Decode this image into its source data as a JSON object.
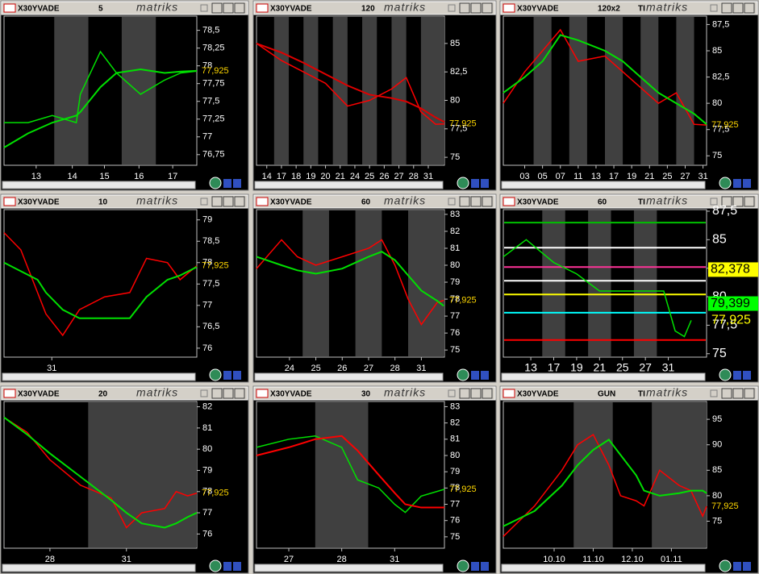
{
  "chart_data": [
    {
      "type": "line",
      "title": "X30YVADE",
      "subtitle": "5",
      "brand": "matriks",
      "x": [
        0,
        3,
        6,
        9,
        9.5,
        12,
        14,
        17,
        20,
        22,
        24
      ],
      "xlim": [
        0,
        24
      ],
      "xticks": [
        {
          "value": 4,
          "label": "13"
        },
        {
          "value": 8.5,
          "label": "14"
        },
        {
          "value": 12.5,
          "label": "15"
        },
        {
          "value": 16.8,
          "label": "16"
        },
        {
          "value": 21,
          "label": "17"
        }
      ],
      "series": [
        {
          "color": "#00e000",
          "values": [
            77.2,
            77.2,
            77.3,
            77.2,
            77.6,
            78.2,
            77.9,
            77.6,
            77.8,
            77.9,
            77.925
          ]
        },
        {
          "color": "#00e000",
          "values": [
            76.85,
            77.05,
            77.2,
            77.3,
            77.35,
            77.7,
            77.9,
            77.95,
            77.9,
            77.92,
            77.93
          ]
        }
      ],
      "ylim": [
        76.6,
        78.7
      ],
      "yticks": [
        {
          "value": 78.5,
          "label": "78,5"
        },
        {
          "value": 78.25,
          "label": "78,25"
        },
        78,
        {
          "value": 77.75,
          "label": "77,75"
        },
        {
          "value": 77.5,
          "label": "77,5"
        },
        {
          "value": 77.25,
          "label": "77,25"
        },
        77,
        {
          "value": 76.75,
          "label": "76,75"
        }
      ],
      "last": {
        "value": 77.925,
        "label": "77,925"
      }
    },
    {
      "type": "line",
      "title": "X30YVADE",
      "subtitle": "120",
      "brand": "matriks",
      "x": [
        -0.7,
        1,
        2.5,
        4,
        5.5,
        7,
        8.5,
        9.5,
        10.5,
        11.5,
        12.1
      ],
      "xlim": [
        -0.7,
        12.1
      ],
      "xticks": [
        {
          "value": 0,
          "label": "14"
        },
        {
          "value": 1,
          "label": "17"
        },
        {
          "value": 2,
          "label": "18"
        },
        {
          "value": 3,
          "label": "19"
        },
        {
          "value": 4,
          "label": "20"
        },
        {
          "value": 5,
          "label": "21"
        },
        {
          "value": 6,
          "label": "24"
        },
        {
          "value": 7,
          "label": "25"
        },
        {
          "value": 8,
          "label": "26"
        },
        {
          "value": 9,
          "label": "27"
        },
        {
          "value": 10,
          "label": "28"
        },
        {
          "value": 11,
          "label": "31"
        }
      ],
      "series": [
        {
          "color": "#ff0000",
          "values": [
            85,
            83.5,
            82.5,
            81.5,
            79.5,
            80,
            81,
            82,
            79,
            77.9,
            77.925
          ]
        },
        {
          "color": "#e00000",
          "values": [
            85,
            84.2,
            83.3,
            82.3,
            81.3,
            80.5,
            80.2,
            79.9,
            79.3,
            78.5,
            78.1
          ]
        }
      ],
      "ylim": [
        74.3,
        87.4
      ],
      "yticks": [
        85,
        {
          "value": 82.5,
          "label": "82,5"
        },
        80,
        {
          "value": 77.5,
          "label": "77,5"
        },
        75
      ],
      "last": {
        "value": 77.925,
        "label": "77,925"
      }
    },
    {
      "type": "line",
      "title": "X30YVADE",
      "subtitle": "120x2",
      "tag": "TI",
      "brand": "matriks",
      "x": [
        -1.2,
        0,
        1,
        2,
        3,
        4.5,
        5.5,
        6.5,
        7.5,
        8.5,
        9.5,
        10.2
      ],
      "xlim": [
        -1.2,
        10.2
      ],
      "xticks": [
        {
          "value": 0,
          "label": "03"
        },
        {
          "value": 1,
          "label": "05"
        },
        {
          "value": 2,
          "label": "07"
        },
        {
          "value": 3,
          "label": "11"
        },
        {
          "value": 4,
          "label": "13"
        },
        {
          "value": 5,
          "label": "17"
        },
        {
          "value": 6,
          "label": "19"
        },
        {
          "value": 7,
          "label": "21"
        },
        {
          "value": 8,
          "label": "25"
        },
        {
          "value": 9,
          "label": "27"
        },
        {
          "value": 10,
          "label": "31"
        }
      ],
      "series": [
        {
          "color": "#ff0000",
          "values": [
            80,
            83,
            85,
            87,
            84,
            84.5,
            83,
            81.5,
            80,
            81,
            78,
            77.925
          ]
        },
        {
          "color": "#00e000",
          "values": [
            81,
            82.5,
            84,
            86.5,
            86,
            85,
            84,
            82.5,
            81,
            80,
            79,
            78
          ]
        }
      ],
      "ylim": [
        74.1,
        88.3
      ],
      "yticks": [
        {
          "value": 87.5,
          "label": "87,5"
        },
        85,
        {
          "value": 82.5,
          "label": "82,5"
        },
        80,
        {
          "value": 77.5,
          "label": "77,5"
        },
        75
      ],
      "last": {
        "value": 77.925,
        "label": "77,925"
      }
    },
    {
      "type": "line",
      "title": "X30YVADE",
      "subtitle": "10",
      "brand": "matriks",
      "x": [
        0,
        2,
        4,
        5,
        7,
        9,
        12,
        15,
        17,
        19.5,
        21,
        23
      ],
      "xlim": [
        0,
        23
      ],
      "xticks": [
        {
          "value": 5.7,
          "label": "31"
        }
      ],
      "series": [
        {
          "color": "#ff0000",
          "values": [
            78.7,
            78.3,
            77.3,
            76.8,
            76.3,
            76.9,
            77.2,
            77.3,
            78.1,
            78,
            77.6,
            77.925
          ]
        },
        {
          "color": "#00e000",
          "values": [
            78,
            77.8,
            77.6,
            77.3,
            76.9,
            76.7,
            76.7,
            76.7,
            77.2,
            77.6,
            77.7,
            77.9
          ]
        }
      ],
      "ylim": [
        75.79,
        79.24
      ],
      "yticks": [
        79,
        {
          "value": 78.5,
          "label": "78,5"
        },
        78,
        {
          "value": 77.5,
          "label": "77,5"
        },
        77,
        {
          "value": 76.5,
          "label": "76,5"
        },
        76
      ],
      "last": {
        "value": 77.925,
        "label": "77,925"
      }
    },
    {
      "type": "line",
      "title": "X30YVADE",
      "subtitle": "60",
      "brand": "matriks",
      "x": [
        -1.25,
        -0.3,
        0.3,
        1,
        2,
        3,
        3.5,
        4,
        4.5,
        5,
        5.6,
        5.85
      ],
      "xlim": [
        -1.25,
        5.875
      ],
      "xticks": [
        {
          "value": 0,
          "label": "24"
        },
        {
          "value": 1,
          "label": "25"
        },
        {
          "value": 2,
          "label": "26"
        },
        {
          "value": 3,
          "label": "27"
        },
        {
          "value": 4,
          "label": "28"
        },
        {
          "value": 5,
          "label": "31"
        }
      ],
      "series": [
        {
          "color": "#ff0000",
          "values": [
            79.8,
            81.5,
            80.5,
            80,
            80.5,
            81,
            81.5,
            80,
            78,
            76.5,
            77.8,
            77.925
          ]
        },
        {
          "color": "#00e000",
          "values": [
            80.5,
            80,
            79.7,
            79.5,
            79.8,
            80.5,
            80.8,
            80.3,
            79.4,
            78.5,
            77.9,
            77.6
          ]
        }
      ],
      "ylim": [
        74.58,
        83.28
      ],
      "yticks": [
        83,
        82,
        81,
        80,
        79,
        78,
        77,
        76,
        75
      ],
      "last": {
        "value": 77.925,
        "label": "77,925"
      }
    },
    {
      "type": "line",
      "title": "X30YVADE",
      "subtitle": "60",
      "tag": "TI",
      "brand": "matriks",
      "x": [
        -1.2,
        -0.2,
        1,
        2,
        3,
        4,
        5,
        5.8,
        6.3,
        6.7,
        7
      ],
      "xlim": [
        -1.2,
        7.67
      ],
      "xticks": [
        {
          "value": 0,
          "label": "13"
        },
        {
          "value": 1,
          "label": "17"
        },
        {
          "value": 2,
          "label": "19"
        },
        {
          "value": 3,
          "label": "21"
        },
        {
          "value": 4,
          "label": "25"
        },
        {
          "value": 5,
          "label": "27"
        },
        {
          "value": 6,
          "label": "31"
        }
      ],
      "series": [
        {
          "color": "#00e000",
          "values": [
            83.5,
            85,
            83,
            82,
            80.5,
            80.5,
            80.5,
            80.5,
            77,
            76.5,
            77.925
          ]
        }
      ],
      "levels": [
        {
          "value": 86.5,
          "color": "#00c000"
        },
        {
          "value": 84.3,
          "color": "#ffffff"
        },
        {
          "value": 82.6,
          "color": "#ff3399"
        },
        {
          "value": 81.4,
          "color": "#ffffff"
        },
        {
          "value": 80.2,
          "color": "#ffff00"
        },
        {
          "value": 78.6,
          "color": "#00ffff"
        },
        {
          "value": 76.2,
          "color": "#ff0000"
        }
      ],
      "price_labels": [
        {
          "value": 82.378,
          "label": "82,378",
          "color": "#ffff00"
        },
        {
          "value": 79.399,
          "label": "79,399",
          "color": "#00ff00"
        }
      ],
      "ylim": [
        74.7,
        87.64
      ],
      "yticks": [
        {
          "value": 87.5,
          "label": "87,5"
        },
        85,
        {
          "value": 82.5,
          "label": "82,5"
        },
        80,
        {
          "value": 77.5,
          "label": "77,5"
        },
        75
      ],
      "last": {
        "value": 77.925,
        "label": "77,925"
      }
    },
    {
      "type": "line",
      "title": "X30YVADE",
      "subtitle": "20",
      "brand": "matriks",
      "x": [
        -0.6,
        -0.3,
        0,
        0.4,
        0.8,
        1,
        1.2,
        1.5,
        1.65,
        1.8,
        1.92
      ],
      "xlim": [
        -0.6,
        1.92
      ],
      "xticks": [
        {
          "value": 0,
          "label": "28"
        },
        {
          "value": 1,
          "label": "31"
        }
      ],
      "series": [
        {
          "color": "#ff0000",
          "values": [
            81.5,
            80.8,
            79.5,
            78.3,
            77.7,
            76.3,
            77,
            77.2,
            78,
            77.8,
            77.925
          ]
        },
        {
          "color": "#00e000",
          "values": [
            81.5,
            80.7,
            79.8,
            78.7,
            77.6,
            77,
            76.5,
            76.3,
            76.5,
            76.8,
            77
          ]
        }
      ],
      "ylim": [
        75.33,
        82.25
      ],
      "yticks": [
        82,
        81,
        80,
        79,
        78,
        77,
        76
      ],
      "last": {
        "value": 77.925,
        "label": "77,925"
      }
    },
    {
      "type": "line",
      "title": "X30YVADE",
      "subtitle": "30",
      "brand": "matriks",
      "x": [
        -0.61,
        0,
        0.5,
        1,
        1.3,
        1.7,
        2,
        2.2,
        2.5,
        2.94
      ],
      "xlim": [
        -0.61,
        2.94
      ],
      "xticks": [
        {
          "value": 0,
          "label": "27"
        },
        {
          "value": 1,
          "label": "28"
        },
        {
          "value": 2,
          "label": "31"
        }
      ],
      "series": [
        {
          "color": "#00e000",
          "values": [
            80.5,
            81,
            81.2,
            80.5,
            78.5,
            78,
            77,
            76.5,
            77.5,
            77.925
          ]
        },
        {
          "color": "#ff0000",
          "values": [
            80,
            80.5,
            81,
            81.2,
            80.3,
            78.8,
            77.7,
            77,
            76.8,
            76.8
          ]
        }
      ],
      "ylim": [
        74.3,
        83.32
      ],
      "yticks": [
        83,
        82,
        81,
        80,
        79,
        78,
        77,
        76,
        75
      ],
      "last": {
        "value": 77.925,
        "label": "77,925"
      }
    },
    {
      "type": "line",
      "title": "X30YVADE",
      "subtitle": "GUN",
      "tag": "TI",
      "brand": "matriks",
      "x": [
        -1.3,
        -0.5,
        0.2,
        0.6,
        1,
        1.4,
        1.7,
        2.1,
        2.3,
        2.7,
        3.2,
        3.5,
        3.8,
        3.9
      ],
      "xlim": [
        -1.3,
        3.9
      ],
      "xticks": [
        {
          "value": 0,
          "label": "10.10"
        },
        {
          "value": 1,
          "label": "11.10"
        },
        {
          "value": 2,
          "label": "12.10"
        },
        {
          "value": 3,
          "label": "01.11"
        }
      ],
      "series": [
        {
          "color": "#ff0000",
          "values": [
            72,
            78,
            85,
            90,
            92,
            86,
            80,
            79,
            78,
            85,
            82,
            81,
            76,
            77.925
          ]
        },
        {
          "color": "#00e000",
          "values": [
            74,
            77,
            82,
            86,
            89,
            91,
            88,
            84,
            81,
            80,
            80.5,
            81,
            81,
            80.5
          ]
        }
      ],
      "ylim": [
        69.7,
        98.5
      ],
      "yticks": [
        95,
        90,
        85,
        80,
        75
      ],
      "last": {
        "value": 77.925,
        "label": "77,925"
      }
    }
  ]
}
